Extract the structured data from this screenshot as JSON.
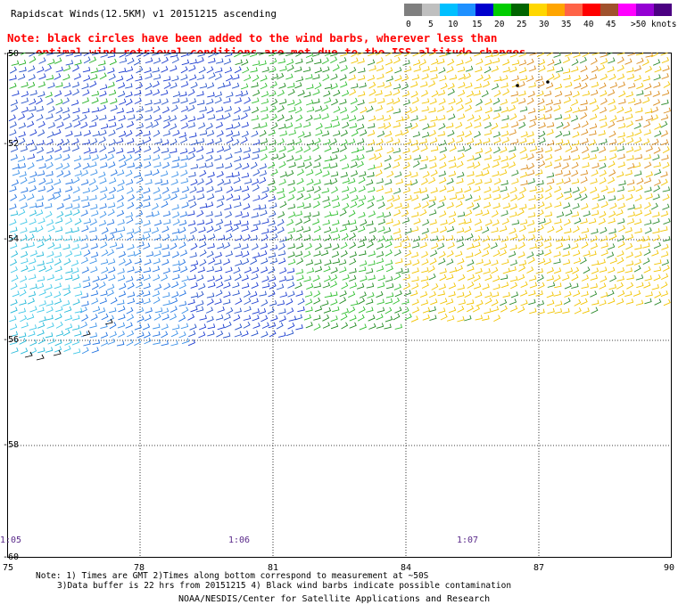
{
  "title": "Rapidscat Winds(12.5KM) v1 20151215 ascending",
  "note": [
    "Note: black circles have been added to the wind barbs, wherever less than",
    "optimal wind retrieval conditions are met due to the ISS altitude changes."
  ],
  "legend": {
    "colors": [
      "#7f7f7f",
      "#bfbfbf",
      "#00bfff",
      "#1e90ff",
      "#0000cd",
      "#00cd00",
      "#006400",
      "#ffd700",
      "#ffa500",
      "#ff6347",
      "#ff0000",
      "#a0522d",
      "#ff00ff",
      "#9400d3",
      "#4b0082"
    ],
    "labels": [
      "0",
      "5",
      "10",
      "15",
      "20",
      "25",
      "30",
      "35",
      "40",
      "45",
      ">50 knots"
    ]
  },
  "lat_labels": [
    "-50",
    "-52",
    "-54",
    "-56",
    "-58",
    "-60"
  ],
  "lon_labels": [
    "75",
    "78",
    "81",
    "84",
    "87",
    "90"
  ],
  "time_labels": [
    "1:05",
    "1:06",
    "1:07"
  ],
  "footnote": [
    "Note: 1) Times are GMT 2)Times along bottom correspond to measurement at ~50S",
    "3)Data buffer is 22 hrs from 20151215 4) Black wind barbs indicate possible contamination"
  ],
  "credit": "NOAA/NESDIS/Center for Satellite Applications and Research"
}
